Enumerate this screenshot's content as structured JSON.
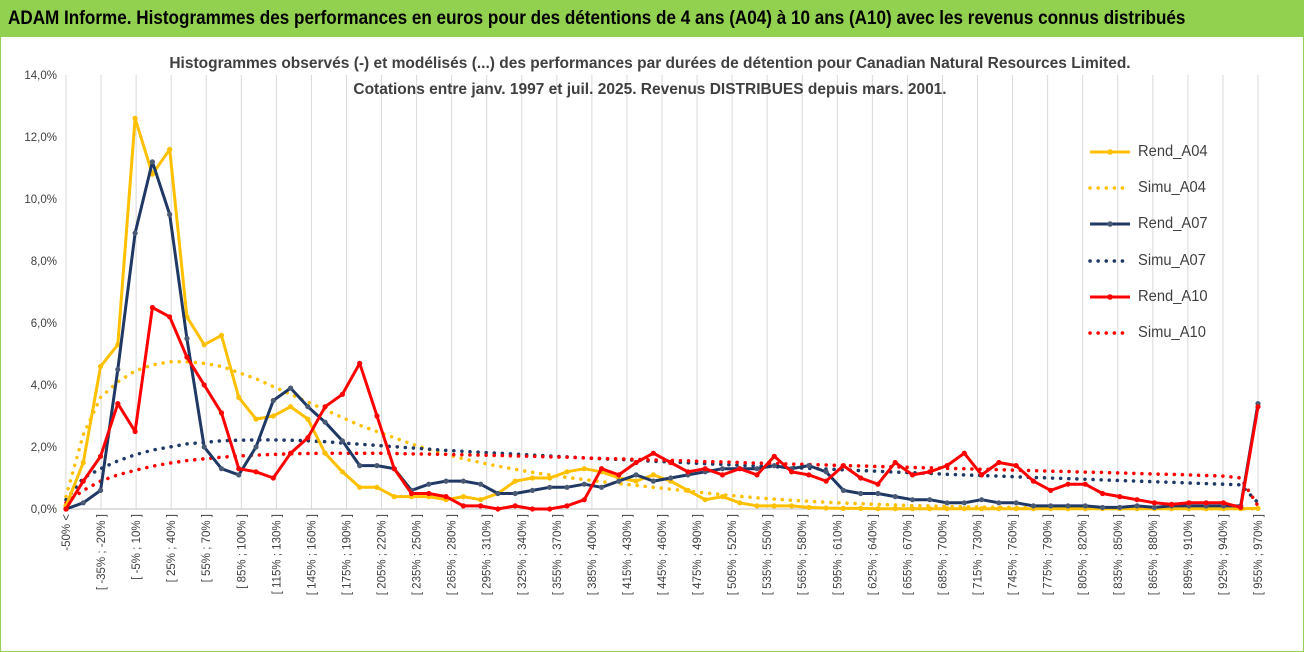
{
  "header": {
    "title": "ADAM Informe. Histogrammes des performances en euros pour des détentions de 4 ans (A04) à 10 ans (A10) avec les revenus connus distribués"
  },
  "chart_data": {
    "type": "line",
    "title_line1": "Histogrammes observés (-) et modélisés (...) des performances par durées de détention pour Canadian Natural Resources Limited.",
    "title_line2": "Cotations entre janv. 1997 et juil. 2025. Revenus DISTRIBUES depuis mars. 2001.",
    "xlabel": "",
    "ylabel": "",
    "ylim": [
      0,
      14
    ],
    "yticks": [
      0,
      2,
      4,
      6,
      8,
      10,
      12,
      14
    ],
    "ytick_labels": [
      "0,0%",
      "2,0%",
      "4,0%",
      "6,0%",
      "8,0%",
      "10,0%",
      "12,0%",
      "14,0%"
    ],
    "grid": "vertical",
    "legend_position": "right",
    "x_tick_labels": [
      "-50% <",
      "[ -35% ; -20% ]",
      "[ -5% ; 10% ]",
      "[ 25% ; 40% ]",
      "[ 55% ; 70% ]",
      "[ 85% ; 100% ]",
      "[ 115% ; 130% ]",
      "[ 145% ; 160% ]",
      "[ 175% ; 190% ]",
      "[ 205% ; 220% ]",
      "[ 235% ; 250% ]",
      "[ 265% ; 280% ]",
      "[ 295% ; 310% ]",
      "[ 325% ; 340% ]",
      "[ 355% ; 370% ]",
      "[ 385% ; 400% ]",
      "[ 415% ; 430% ]",
      "[ 445% ; 460% ]",
      "[ 475% ; 490% ]",
      "[ 505% ; 520% ]",
      "[ 535% ; 550% ]",
      "[ 565% ; 580% ]",
      "[ 595% ; 610% ]",
      "[ 625% ; 640% ]",
      "[ 655% ; 670% ]",
      "[ 685% ; 700% ]",
      "[ 715% ; 730% ]",
      "[ 745% ; 760% ]",
      "[ 775% ; 790% ]",
      "[ 805% ; 820% ]",
      "[ 835% ; 850% ]",
      "[ 865% ; 880% ]",
      "[ 895% ; 910% ]",
      "[ 925% ; 940% ]",
      "[ 955% ; 970% ]"
    ],
    "colors": {
      "A04": "#ffc000",
      "A07": "#1f3864",
      "A10": "#ff0000",
      "marker07": "#4a5a75",
      "grid": "#d9d9d9",
      "text": "#404040"
    },
    "series": [
      {
        "name": "Rend_A04",
        "style": "solid",
        "color": "#ffc000",
        "values": [
          0.1,
          1.5,
          4.6,
          5.3,
          12.6,
          10.8,
          11.6,
          6.2,
          5.3,
          5.6,
          3.6,
          2.9,
          3.0,
          3.3,
          2.9,
          1.8,
          1.2,
          0.7,
          0.7,
          0.4,
          0.4,
          0.4,
          0.3,
          0.4,
          0.3,
          0.5,
          0.9,
          1.0,
          1.0,
          1.2,
          1.3,
          1.2,
          1.0,
          0.9,
          1.1,
          0.9,
          0.6,
          0.3,
          0.4,
          0.2,
          0.1,
          0.1,
          0.1,
          0.05,
          0.03,
          0.02,
          0.02,
          0.01,
          0.01,
          0.01,
          0.01,
          0.01,
          0.01,
          0.01,
          0.01,
          0.01,
          0.01,
          0.01,
          0.01,
          0.01,
          0.01,
          0.01,
          0.01,
          0.01,
          0.01,
          0.01,
          0.01,
          0.01,
          0.01,
          0.02
        ]
      },
      {
        "name": "Simu_A04",
        "style": "dotted",
        "color": "#ffc000",
        "values": [
          0.4,
          2.4,
          3.6,
          4.1,
          4.45,
          4.65,
          4.75,
          4.75,
          4.7,
          4.6,
          4.4,
          4.2,
          3.95,
          3.7,
          3.45,
          3.2,
          2.95,
          2.7,
          2.5,
          2.3,
          2.1,
          1.92,
          1.76,
          1.62,
          1.5,
          1.38,
          1.28,
          1.18,
          1.1,
          1.02,
          0.95,
          0.88,
          0.82,
          0.76,
          0.7,
          0.64,
          0.58,
          0.52,
          0.46,
          0.41,
          0.36,
          0.32,
          0.28,
          0.25,
          0.22,
          0.19,
          0.17,
          0.15,
          0.13,
          0.11,
          0.1,
          0.08,
          0.07,
          0.06,
          0.05,
          0.05,
          0.04,
          0.04,
          0.03,
          0.03,
          0.03,
          0.02,
          0.02,
          0.02,
          0.02,
          0.02,
          0.01,
          0.01,
          0.01,
          0.01
        ]
      },
      {
        "name": "Rend_A07",
        "style": "solid",
        "color": "#1f3864",
        "values": [
          0.0,
          0.2,
          0.6,
          4.5,
          8.9,
          11.2,
          9.5,
          5.5,
          2.0,
          1.3,
          1.1,
          2.0,
          3.5,
          3.9,
          3.3,
          2.8,
          2.2,
          1.4,
          1.4,
          1.3,
          0.6,
          0.8,
          0.9,
          0.9,
          0.8,
          0.5,
          0.5,
          0.6,
          0.7,
          0.7,
          0.8,
          0.7,
          0.9,
          1.1,
          0.9,
          1.0,
          1.1,
          1.2,
          1.3,
          1.3,
          1.3,
          1.4,
          1.3,
          1.4,
          1.2,
          0.6,
          0.5,
          0.5,
          0.4,
          0.3,
          0.3,
          0.2,
          0.2,
          0.3,
          0.2,
          0.2,
          0.1,
          0.1,
          0.1,
          0.1,
          0.05,
          0.05,
          0.1,
          0.05,
          0.1,
          0.1,
          0.1,
          0.1,
          0.1,
          3.4
        ]
      },
      {
        "name": "Simu_A07",
        "style": "dotted",
        "color": "#1f3864",
        "values": [
          0.3,
          1.0,
          1.3,
          1.55,
          1.75,
          1.9,
          2.0,
          2.1,
          2.15,
          2.2,
          2.22,
          2.23,
          2.23,
          2.22,
          2.2,
          2.17,
          2.13,
          2.09,
          2.05,
          2.01,
          1.97,
          1.93,
          1.89,
          1.86,
          1.83,
          1.8,
          1.77,
          1.74,
          1.71,
          1.68,
          1.65,
          1.62,
          1.6,
          1.57,
          1.54,
          1.52,
          1.49,
          1.46,
          1.44,
          1.41,
          1.39,
          1.36,
          1.34,
          1.31,
          1.29,
          1.26,
          1.24,
          1.22,
          1.19,
          1.17,
          1.15,
          1.12,
          1.1,
          1.08,
          1.06,
          1.04,
          1.02,
          1.0,
          0.98,
          0.96,
          0.94,
          0.92,
          0.9,
          0.88,
          0.86,
          0.84,
          0.82,
          0.8,
          0.78,
          0.2
        ]
      },
      {
        "name": "Rend_A10",
        "style": "solid",
        "color": "#ff0000",
        "values": [
          0.0,
          0.9,
          1.7,
          3.4,
          2.5,
          6.5,
          6.2,
          4.9,
          4.0,
          3.1,
          1.3,
          1.2,
          1.0,
          1.8,
          2.3,
          3.3,
          3.7,
          4.7,
          3.0,
          1.3,
          0.5,
          0.5,
          0.4,
          0.1,
          0.1,
          0.0,
          0.1,
          0.0,
          0.0,
          0.1,
          0.3,
          1.3,
          1.1,
          1.5,
          1.8,
          1.5,
          1.2,
          1.3,
          1.1,
          1.3,
          1.1,
          1.7,
          1.2,
          1.1,
          0.9,
          1.4,
          1.0,
          0.8,
          1.5,
          1.1,
          1.2,
          1.4,
          1.8,
          1.1,
          1.5,
          1.4,
          0.9,
          0.6,
          0.8,
          0.8,
          0.5,
          0.4,
          0.3,
          0.2,
          0.15,
          0.2,
          0.2,
          0.2,
          0.05,
          3.3
        ]
      },
      {
        "name": "Simu_A10",
        "style": "dotted",
        "color": "#ff0000",
        "values": [
          0.2,
          0.6,
          0.9,
          1.1,
          1.25,
          1.38,
          1.48,
          1.56,
          1.62,
          1.67,
          1.71,
          1.74,
          1.76,
          1.78,
          1.79,
          1.8,
          1.8,
          1.8,
          1.8,
          1.79,
          1.78,
          1.77,
          1.76,
          1.75,
          1.74,
          1.73,
          1.71,
          1.7,
          1.68,
          1.67,
          1.65,
          1.63,
          1.62,
          1.6,
          1.58,
          1.57,
          1.55,
          1.53,
          1.52,
          1.5,
          1.48,
          1.47,
          1.45,
          1.44,
          1.42,
          1.4,
          1.39,
          1.37,
          1.36,
          1.34,
          1.33,
          1.31,
          1.3,
          1.28,
          1.27,
          1.25,
          1.24,
          1.22,
          1.21,
          1.19,
          1.18,
          1.16,
          1.15,
          1.13,
          1.12,
          1.1,
          1.08,
          1.06,
          1.0,
          0.1
        ]
      }
    ]
  }
}
